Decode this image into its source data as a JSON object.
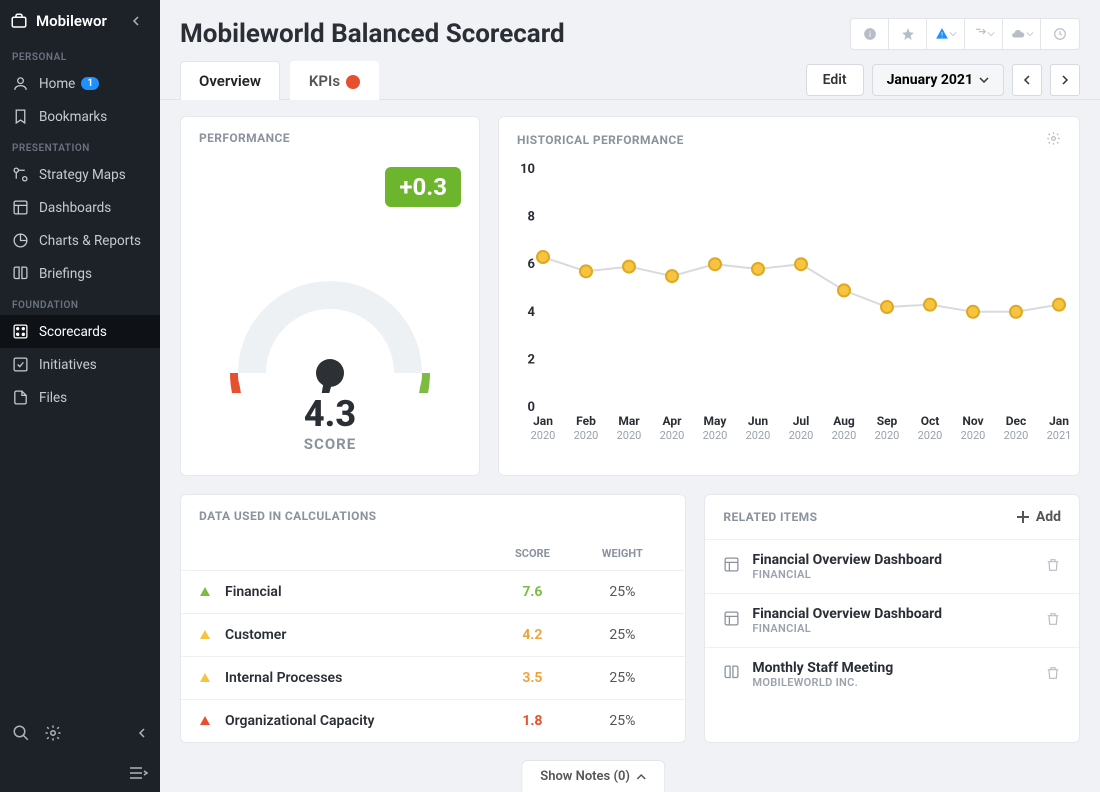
{
  "app_name": "Mobilewor",
  "page_title": "Mobileworld Balanced Scorecard",
  "sidebar": {
    "sections": [
      {
        "label": "PERSONAL",
        "items": [
          {
            "icon": "user",
            "label": "Home",
            "badge": "1"
          },
          {
            "icon": "bookmark",
            "label": "Bookmarks"
          }
        ]
      },
      {
        "label": "PRESENTATION",
        "items": [
          {
            "icon": "strategy",
            "label": "Strategy Maps"
          },
          {
            "icon": "dashboard",
            "label": "Dashboards"
          },
          {
            "icon": "chart",
            "label": "Charts & Reports"
          },
          {
            "icon": "book",
            "label": "Briefings"
          }
        ]
      },
      {
        "label": "FOUNDATION",
        "items": [
          {
            "icon": "scorecard",
            "label": "Scorecards",
            "active": true
          },
          {
            "icon": "check",
            "label": "Initiatives"
          },
          {
            "icon": "file",
            "label": "Files"
          }
        ]
      }
    ]
  },
  "tabs": [
    {
      "label": "Overview",
      "active": true
    },
    {
      "label": "KPIs",
      "alert": true
    }
  ],
  "edit_label": "Edit",
  "period_label": "January 2021",
  "performance": {
    "title": "PERFORMANCE",
    "delta": "+0.3",
    "delta_bg": "#6db52c",
    "score": "4.3",
    "score_label": "SCORE",
    "gauge": {
      "value": 4.3,
      "min": 0,
      "max": 10,
      "arc_start_deg": 180,
      "arc_end_deg": 0,
      "segments": [
        {
          "color": "#e6502f",
          "from": 0,
          "to": 2.5
        },
        {
          "color": "#f1a33a",
          "from": 2.5,
          "to": 5
        },
        {
          "color": "#f6c440",
          "from": 5,
          "to": 7.5
        },
        {
          "color": "#7dbb42",
          "from": 7.5,
          "to": 10
        }
      ],
      "needle_color": "#2d3035",
      "track_color": "#eef1f4"
    }
  },
  "historical": {
    "title": "HISTORICAL PERFORMANCE",
    "type": "line",
    "x_labels": [
      [
        "Jan",
        "2020"
      ],
      [
        "Feb",
        "2020"
      ],
      [
        "Mar",
        "2020"
      ],
      [
        "Apr",
        "2020"
      ],
      [
        "May",
        "2020"
      ],
      [
        "Jun",
        "2020"
      ],
      [
        "Jul",
        "2020"
      ],
      [
        "Aug",
        "2020"
      ],
      [
        "Sep",
        "2020"
      ],
      [
        "Oct",
        "2020"
      ],
      [
        "Nov",
        "2020"
      ],
      [
        "Dec",
        "2020"
      ],
      [
        "Jan",
        "2021"
      ]
    ],
    "y_ticks": [
      0,
      2,
      4,
      6,
      8,
      10
    ],
    "ylim": [
      0,
      10
    ],
    "values": [
      6.3,
      5.7,
      5.9,
      5.5,
      6.0,
      5.8,
      6.0,
      4.9,
      4.2,
      4.3,
      4.0,
      4.0,
      4.3
    ],
    "line_color": "#d7dbe0",
    "marker_fill": "#f6c440",
    "marker_stroke": "#e0a820",
    "marker_radius": 6,
    "axis_color": "#9aa2ad",
    "label_fontsize": 11
  },
  "data_used": {
    "title": "DATA USED IN CALCULATIONS",
    "columns": [
      "SCORE",
      "WEIGHT"
    ],
    "rows": [
      {
        "tri_color": "#7dbb42",
        "name": "Financial",
        "score": "7.6",
        "score_color": "#7dbb42",
        "weight": "25%"
      },
      {
        "tri_color": "#f6c440",
        "name": "Customer",
        "score": "4.2",
        "score_color": "#f1a33a",
        "weight": "25%"
      },
      {
        "tri_color": "#f6c440",
        "name": "Internal Processes",
        "score": "3.5",
        "score_color": "#f1a33a",
        "weight": "25%"
      },
      {
        "tri_color": "#e6502f",
        "name": "Organizational Capacity",
        "score": "1.8",
        "score_color": "#e6502f",
        "weight": "25%"
      }
    ]
  },
  "related": {
    "title": "RELATED ITEMS",
    "add_label": "Add",
    "items": [
      {
        "icon": "dashboard",
        "title": "Financial Overview Dashboard",
        "sub": "FINANCIAL"
      },
      {
        "icon": "dashboard",
        "title": "Financial Overview Dashboard",
        "sub": "FINANCIAL"
      },
      {
        "icon": "book",
        "title": "Monthly Staff Meeting",
        "sub": "MOBILEWORLD INC."
      }
    ]
  },
  "show_notes_label": "Show Notes (0)"
}
